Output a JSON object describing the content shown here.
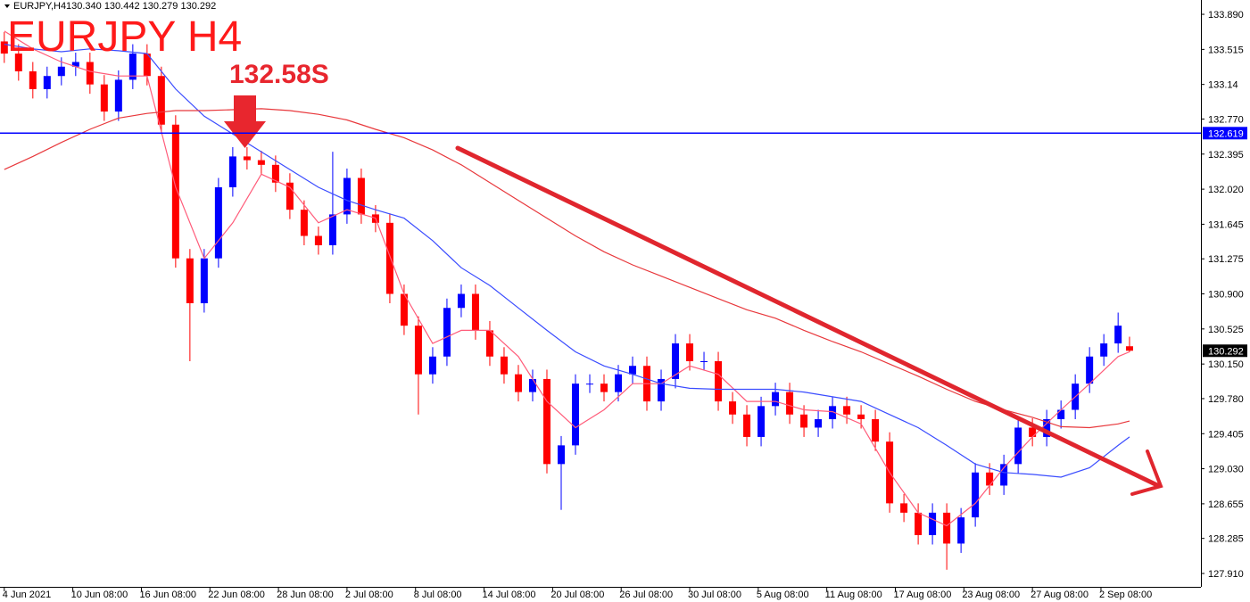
{
  "chart_data": {
    "type": "candlestick",
    "info_bar": {
      "symbol": "EURJPY,H4",
      "quote": "130.340 130.442 130.279 130.292"
    },
    "title": "EURJPY H4",
    "annotation": "132.58S",
    "up_color": "#0000ff",
    "down_color": "#ff0000",
    "x": [
      0,
      5,
      10,
      15,
      20,
      25,
      30,
      35,
      40,
      45,
      50,
      55,
      60,
      65,
      70,
      75,
      80,
      85,
      90,
      95,
      100,
      105,
      110,
      115,
      120,
      125,
      130,
      135,
      140,
      145,
      150,
      155,
      160,
      165,
      170,
      175,
      180,
      185,
      190,
      195,
      200,
      205,
      210,
      215,
      220,
      225,
      230,
      235,
      240,
      245,
      250,
      255,
      260,
      265,
      270,
      275,
      280,
      285,
      290,
      295,
      300,
      305,
      310,
      315,
      320,
      325,
      330,
      335,
      340,
      345,
      350,
      355,
      360,
      365,
      370,
      375,
      380,
      385,
      390,
      394
    ],
    "open": [
      133.6,
      133.47,
      133.28,
      133.09,
      133.23,
      133.33,
      133.38,
      133.14,
      132.85,
      133.19,
      133.47,
      133.23,
      132.71,
      131.28,
      130.8,
      131.28,
      132.04,
      132.37,
      132.33,
      132.28,
      132.09,
      131.8,
      131.52,
      131.42,
      131.75,
      132.14,
      131.75,
      131.66,
      130.9,
      130.56,
      130.04,
      130.23,
      130.75,
      130.9,
      130.51,
      130.23,
      130.04,
      129.85,
      129.99,
      129.08,
      129.28,
      129.94,
      129.94,
      129.85,
      130.04,
      130.13,
      129.75,
      129.99,
      130.37,
      130.18,
      130.18,
      129.75,
      129.61,
      129.37,
      129.7,
      129.85,
      129.61,
      129.47,
      129.56,
      129.7,
      129.61,
      129.56,
      129.32,
      128.66,
      128.56,
      128.32,
      128.56,
      128.23,
      128.51,
      128.99,
      128.85,
      129.08,
      129.47,
      129.37,
      129.56,
      129.66,
      129.94,
      130.23,
      130.37,
      130.34
    ],
    "high": [
      133.7,
      133.57,
      133.38,
      133.33,
      133.43,
      133.48,
      133.48,
      133.24,
      133.29,
      133.57,
      133.57,
      133.33,
      132.81,
      131.38,
      131.38,
      132.14,
      132.47,
      132.47,
      132.43,
      132.38,
      132.19,
      131.9,
      131.62,
      132.42,
      132.24,
      132.24,
      131.85,
      131.76,
      131.0,
      130.66,
      130.33,
      130.85,
      131.0,
      131.0,
      130.61,
      130.33,
      130.14,
      130.09,
      130.09,
      129.38,
      130.04,
      130.04,
      130.04,
      130.14,
      130.23,
      130.23,
      130.09,
      130.47,
      130.47,
      130.28,
      130.28,
      129.85,
      129.71,
      129.8,
      129.95,
      129.95,
      129.71,
      129.66,
      129.8,
      129.8,
      129.71,
      129.66,
      129.42,
      128.76,
      128.66,
      128.66,
      128.66,
      128.61,
      129.09,
      129.09,
      129.18,
      129.57,
      129.57,
      129.66,
      129.76,
      130.04,
      130.33,
      130.47,
      130.7,
      130.442
    ],
    "low": [
      133.37,
      133.18,
      132.99,
      132.99,
      133.13,
      133.23,
      133.04,
      132.75,
      132.75,
      133.09,
      133.13,
      132.61,
      131.18,
      130.18,
      130.7,
      131.18,
      131.94,
      132.23,
      132.18,
      131.99,
      131.7,
      131.42,
      131.32,
      131.32,
      131.65,
      131.65,
      131.56,
      130.8,
      130.46,
      129.61,
      129.94,
      130.13,
      130.65,
      130.41,
      130.13,
      129.94,
      129.75,
      129.75,
      128.98,
      128.59,
      129.18,
      129.84,
      129.75,
      129.75,
      129.94,
      129.65,
      129.65,
      129.89,
      130.08,
      130.08,
      129.65,
      129.51,
      129.27,
      129.27,
      129.6,
      129.51,
      129.37,
      129.37,
      129.46,
      129.51,
      129.46,
      129.22,
      128.56,
      128.46,
      128.22,
      128.22,
      127.95,
      128.13,
      128.41,
      128.75,
      128.75,
      128.98,
      129.27,
      129.27,
      129.46,
      129.56,
      129.84,
      130.13,
      130.27,
      130.279
    ],
    "close": [
      133.47,
      133.28,
      133.09,
      133.23,
      133.33,
      133.38,
      133.14,
      132.85,
      133.19,
      133.47,
      133.23,
      132.71,
      131.28,
      130.8,
      131.28,
      132.04,
      132.37,
      132.33,
      132.28,
      132.09,
      131.8,
      131.52,
      131.42,
      131.75,
      132.14,
      131.75,
      131.66,
      130.9,
      130.56,
      130.04,
      130.23,
      130.75,
      130.9,
      130.51,
      130.23,
      130.04,
      129.85,
      129.99,
      129.08,
      129.28,
      129.94,
      129.94,
      129.85,
      130.04,
      130.13,
      129.75,
      129.99,
      130.37,
      130.18,
      130.18,
      129.75,
      129.61,
      129.37,
      129.7,
      129.85,
      129.61,
      129.47,
      129.56,
      129.7,
      129.61,
      129.56,
      129.32,
      128.66,
      128.56,
      128.32,
      128.56,
      128.23,
      128.51,
      128.99,
      128.85,
      129.08,
      129.47,
      129.37,
      129.56,
      129.66,
      129.94,
      130.23,
      130.37,
      130.56,
      130.292
    ],
    "series": [
      {
        "color": "#ff5c7a",
        "x": [
          0,
          10,
          20,
          30,
          40,
          50,
          60,
          70,
          80,
          90,
          100,
          110,
          120,
          130,
          140,
          150,
          160,
          170,
          180,
          190,
          200,
          210,
          220,
          230,
          240,
          250,
          260,
          270,
          280,
          290,
          300,
          310,
          320,
          330,
          340,
          350,
          360,
          370,
          380,
          390,
          394
        ],
        "values": [
          133.71,
          133.52,
          133.38,
          133.28,
          133.23,
          133.23,
          132.04,
          131.28,
          131.66,
          132.18,
          132.04,
          131.66,
          131.8,
          131.71,
          130.9,
          130.37,
          130.51,
          130.51,
          130.23,
          129.75,
          129.47,
          129.66,
          129.94,
          129.94,
          130.13,
          130.04,
          129.75,
          129.75,
          129.66,
          129.64,
          129.51,
          128.99,
          128.56,
          128.42,
          128.66,
          129.04,
          129.37,
          129.66,
          129.94,
          130.23,
          130.28
        ]
      },
      {
        "color": "#3a4cff",
        "x": [
          0,
          10,
          20,
          30,
          40,
          50,
          60,
          70,
          80,
          90,
          100,
          110,
          120,
          130,
          140,
          150,
          160,
          170,
          180,
          190,
          200,
          210,
          220,
          230,
          240,
          250,
          260,
          270,
          280,
          290,
          300,
          310,
          320,
          330,
          340,
          350,
          360,
          370,
          380,
          390,
          394
        ],
        "values": [
          133.57,
          133.52,
          133.49,
          133.52,
          133.5,
          133.47,
          133.09,
          132.8,
          132.61,
          132.42,
          132.23,
          132.04,
          131.9,
          131.8,
          131.71,
          131.47,
          131.18,
          130.99,
          130.75,
          130.51,
          130.28,
          130.13,
          130.04,
          129.94,
          129.89,
          129.88,
          129.88,
          129.88,
          129.85,
          129.8,
          129.75,
          129.61,
          129.47,
          129.28,
          129.08,
          128.99,
          128.97,
          128.94,
          129.04,
          129.28,
          129.37
        ]
      },
      {
        "color": "#e8383c",
        "x": [
          0,
          10,
          20,
          30,
          40,
          50,
          60,
          70,
          80,
          90,
          100,
          110,
          120,
          130,
          140,
          150,
          160,
          170,
          180,
          190,
          200,
          210,
          220,
          230,
          240,
          250,
          260,
          270,
          280,
          290,
          300,
          310,
          320,
          330,
          340,
          350,
          360,
          370,
          380,
          390,
          394
        ],
        "values": [
          132.23,
          132.37,
          132.52,
          132.66,
          132.78,
          132.83,
          132.86,
          132.86,
          132.87,
          132.88,
          132.86,
          132.82,
          132.76,
          132.66,
          132.57,
          132.44,
          132.28,
          132.09,
          131.9,
          131.71,
          131.52,
          131.35,
          131.21,
          131.09,
          130.97,
          130.85,
          130.73,
          130.64,
          130.51,
          130.39,
          130.28,
          130.15,
          130.02,
          129.88,
          129.75,
          129.66,
          129.58,
          129.48,
          129.47,
          129.51,
          129.54
        ]
      }
    ],
    "hline": {
      "value": 132.619,
      "color": "#0000ff"
    },
    "current_price": 130.292,
    "xlim": [
      -1.5,
      419
    ],
    "xticks": [
      {
        "value": 0,
        "label": "4 Jun 2021"
      },
      {
        "value": 24,
        "label": "10 Jun 08:00"
      },
      {
        "value": 48,
        "label": "16 Jun 08:00"
      },
      {
        "value": 72,
        "label": "22 Jun 08:00"
      },
      {
        "value": 96,
        "label": "28 Jun 08:00"
      },
      {
        "value": 120,
        "label": "2 Jul 08:00"
      },
      {
        "value": 144,
        "label": "8 Jul 08:00"
      },
      {
        "value": 168,
        "label": "14 Jul 08:00"
      },
      {
        "value": 192,
        "label": "20 Jul 08:00"
      },
      {
        "value": 216,
        "label": "26 Jul 08:00"
      },
      {
        "value": 240,
        "label": "30 Jul 08:00"
      },
      {
        "value": 264,
        "label": "5 Aug 08:00"
      },
      {
        "value": 288,
        "label": "11 Aug 08:00"
      },
      {
        "value": 312,
        "label": "17 Aug 08:00"
      },
      {
        "value": 336,
        "label": "23 Aug 08:00"
      },
      {
        "value": 360,
        "label": "27 Aug 08:00"
      },
      {
        "value": 384,
        "label": "2 Sep 08:00"
      }
    ],
    "ylim": [
      127.767,
      134.043
    ],
    "yticks": [
      {
        "value": 133.89,
        "label": "133.890"
      },
      133.515,
      133.14,
      {
        "value": 132.77,
        "label": "132.770"
      },
      132.395,
      {
        "value": 132.02,
        "label": "132.020"
      },
      131.645,
      131.275,
      {
        "value": 130.9,
        "label": "130.900"
      },
      130.525,
      {
        "value": 130.15,
        "label": "130.150"
      },
      {
        "value": 129.78,
        "label": "129.780"
      },
      129.405,
      {
        "value": 129.03,
        "label": "129.030"
      },
      128.655,
      128.285,
      {
        "value": 127.91,
        "label": "127.910"
      }
    ]
  }
}
